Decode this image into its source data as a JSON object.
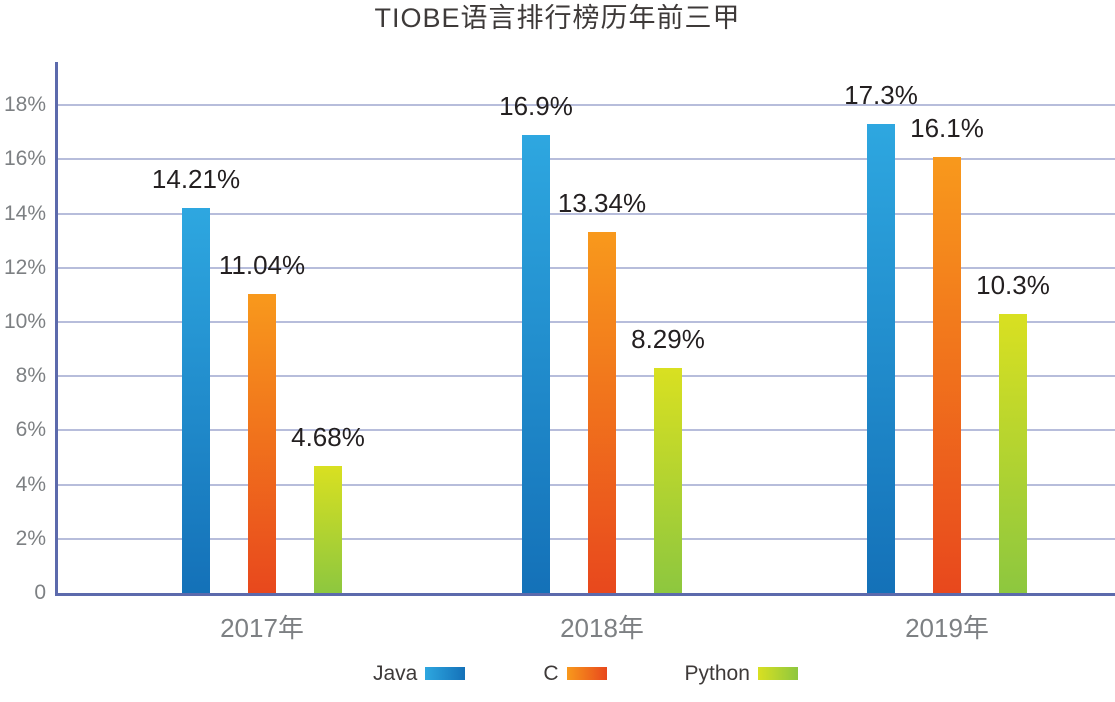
{
  "title": "TIOBE语言排行榜历年前三甲",
  "colors": {
    "axis": "#5c6aac",
    "gridline": "#b7bddb",
    "title_text": "#3e3a39",
    "value_text": "#231f20",
    "tick_text": "#7d8083",
    "legend_text": "#3e3a39",
    "background": "#ffffff"
  },
  "chart_data": {
    "type": "bar",
    "title": "TIOBE语言排行榜历年前三甲",
    "xlabel": "",
    "ylabel": "",
    "categories": [
      "2017年",
      "2018年",
      "2019年"
    ],
    "series": [
      {
        "name": "Java",
        "values": [
          14.21,
          16.9,
          17.3
        ],
        "labels": [
          "14.21%",
          "16.9%",
          "17.3%"
        ],
        "color_top": "#2ea7e0",
        "color_bottom": "#1471b8"
      },
      {
        "name": "C",
        "values": [
          11.04,
          13.34,
          16.1
        ],
        "labels": [
          "11.04%",
          "13.34%",
          "16.1%"
        ],
        "color_top": "#f8991c",
        "color_bottom": "#e8481d"
      },
      {
        "name": "Python",
        "values": [
          4.68,
          8.29,
          10.3
        ],
        "labels": [
          "4.68%",
          "8.29%",
          "10.3%"
        ],
        "color_top": "#d9e021",
        "color_bottom": "#8dc73f"
      }
    ],
    "y_ticks": [
      {
        "v": 0,
        "label": "0"
      },
      {
        "v": 2,
        "label": "2%"
      },
      {
        "v": 4,
        "label": "4%"
      },
      {
        "v": 6,
        "label": "6%"
      },
      {
        "v": 8,
        "label": "8%"
      },
      {
        "v": 10,
        "label": "10%"
      },
      {
        "v": 12,
        "label": "12%"
      },
      {
        "v": 14,
        "label": "14%"
      },
      {
        "v": 16,
        "label": "16%"
      },
      {
        "v": 18,
        "label": "18%"
      }
    ],
    "ylim": [
      0,
      19.6
    ],
    "grid": true,
    "legend_position": "bottom"
  }
}
